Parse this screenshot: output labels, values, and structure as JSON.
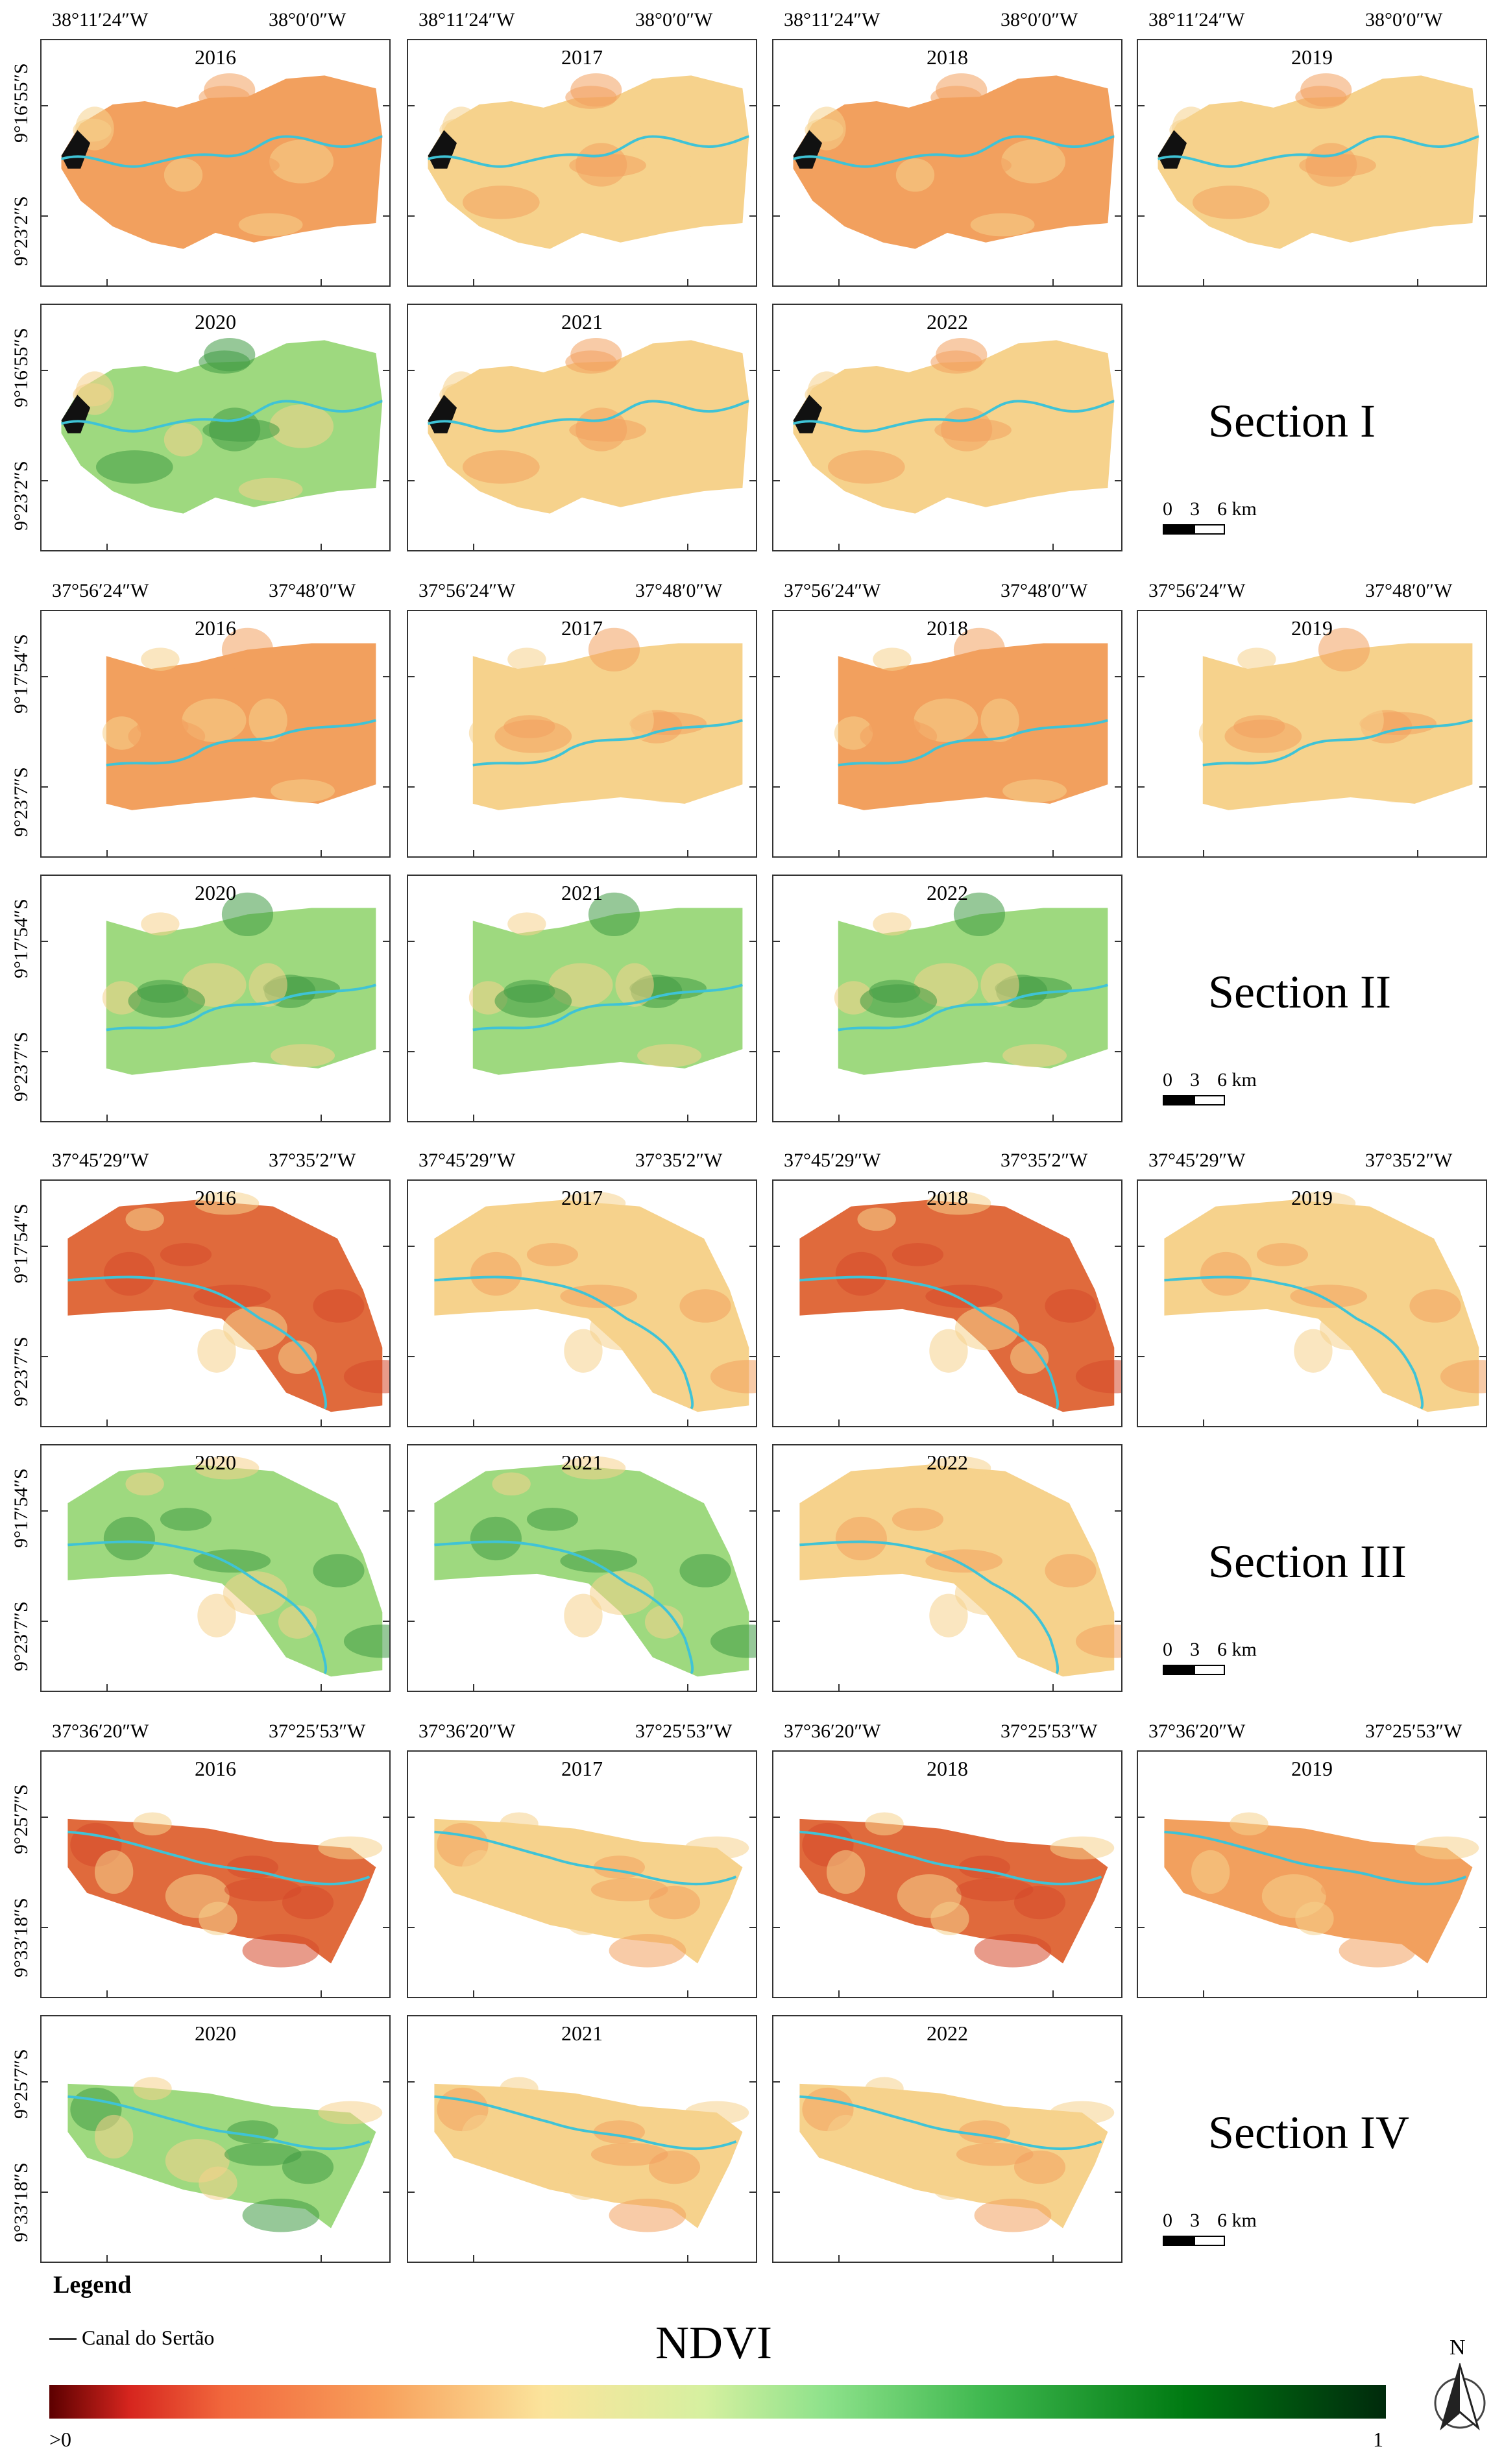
{
  "sections": [
    {
      "title": "Section I",
      "lon_labels": [
        "38°11′24″W",
        "38°0′0″W"
      ],
      "lat_labels": [
        "9°16′55″S",
        "9°23′2″S"
      ],
      "years": [
        "2016",
        "2017",
        "2018",
        "2019",
        "2020",
        "2021",
        "2022"
      ],
      "scale": {
        "l0": "0",
        "l1": "3",
        "l2": "6 km"
      }
    },
    {
      "title": "Section II",
      "lon_labels": [
        "37°56′24″W",
        "37°48′0″W"
      ],
      "lat_labels": [
        "9°17′54″S",
        "9°23′7″S"
      ],
      "years": [
        "2016",
        "2017",
        "2018",
        "2019",
        "2020",
        "2021",
        "2022"
      ],
      "scale": {
        "l0": "0",
        "l1": "3",
        "l2": "6 km"
      }
    },
    {
      "title": "Section III",
      "lon_labels": [
        "37°45′29″W",
        "37°35′2″W"
      ],
      "lat_labels": [
        "9°17′54″S",
        "9°23′7″S"
      ],
      "years": [
        "2016",
        "2017",
        "2018",
        "2019",
        "2020",
        "2021",
        "2022"
      ],
      "scale": {
        "l0": "0",
        "l1": "3",
        "l2": "6 km"
      }
    },
    {
      "title": "Section IV",
      "lon_labels": [
        "37°36′20″W",
        "37°25′53″W"
      ],
      "lat_labels": [
        "9°25′7″S",
        "9°33′18″S"
      ],
      "years": [
        "2016",
        "2017",
        "2018",
        "2019",
        "2020",
        "2021",
        "2022"
      ],
      "scale": {
        "l0": "0",
        "l1": "3",
        "l2": "6 km"
      }
    }
  ],
  "legend": {
    "title": "Legend",
    "line_label": "Canal do Sertão",
    "ndvi_title": "NDVI",
    "ramp_min": ">0",
    "ramp_max": "1",
    "north": "N"
  },
  "colors": {
    "river": "#3fc3d6",
    "red": "#e06a3c",
    "orange": "#f2a05e",
    "yellow": "#f6d28c",
    "green": "#9ed97f",
    "darkgreen": "#3f9a44",
    "nodata": "#111111"
  },
  "panel_tone": {
    "I": [
      "orange",
      "yellow",
      "orange",
      "yellow",
      "green",
      "yellow",
      "yellow"
    ],
    "II": [
      "orange",
      "yellow",
      "orange",
      "yellow",
      "green",
      "green",
      "green"
    ],
    "III": [
      "red",
      "yellow",
      "red",
      "yellow",
      "green",
      "green",
      "yellow"
    ],
    "IV": [
      "red",
      "yellow",
      "red",
      "orange",
      "green",
      "yellow",
      "yellow"
    ]
  }
}
